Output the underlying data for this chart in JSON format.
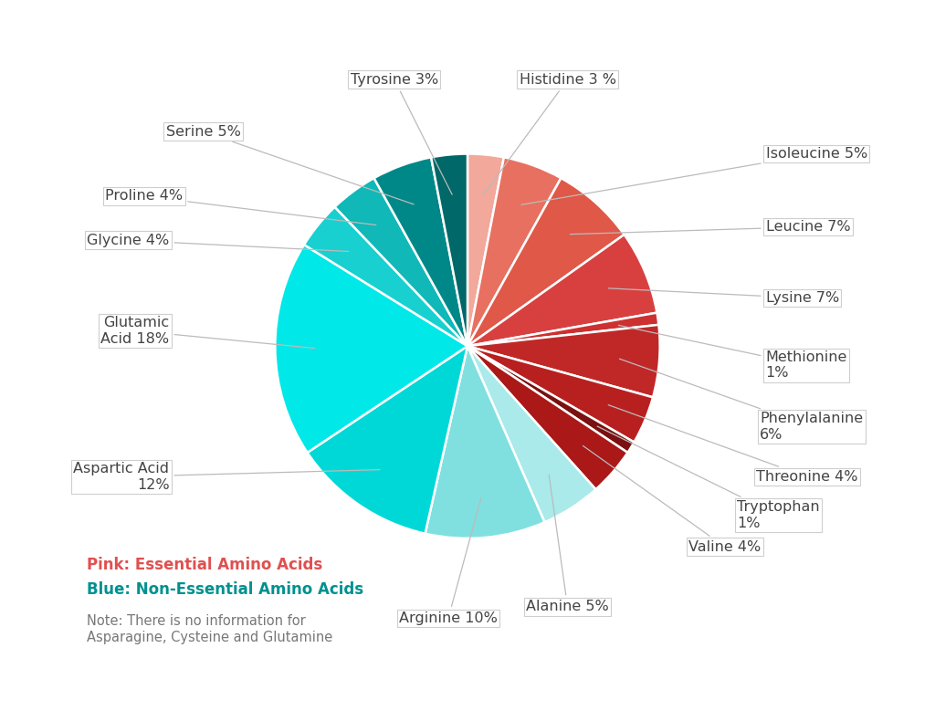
{
  "slices": [
    {
      "label": "Histidine 3 %",
      "value": 3,
      "color": "#F2A89A"
    },
    {
      "label": "Isoleucine 5%",
      "value": 5,
      "color": "#E87060"
    },
    {
      "label": "Leucine 7%",
      "value": 7,
      "color": "#E05848"
    },
    {
      "label": "Lysine 7%",
      "value": 7,
      "color": "#D84040"
    },
    {
      "label": "Methionine\n1%",
      "value": 1,
      "color": "#CC3030"
    },
    {
      "label": "Phenylalanine\n6%",
      "value": 6,
      "color": "#C02828"
    },
    {
      "label": "Threonine 4%",
      "value": 4,
      "color": "#B82020"
    },
    {
      "label": "Tryptophan\n1%",
      "value": 1,
      "color": "#7A1010"
    },
    {
      "label": "Valine 4%",
      "value": 4,
      "color": "#AA1818"
    },
    {
      "label": "Alanine 5%",
      "value": 5,
      "color": "#AAEAEA"
    },
    {
      "label": "Arginine 10%",
      "value": 10,
      "color": "#80E0E0"
    },
    {
      "label": "Aspartic Acid\n12%",
      "value": 12,
      "color": "#00D8D8"
    },
    {
      "label": "Glutamic\nAcid 18%",
      "value": 18,
      "color": "#00E8E8"
    },
    {
      "label": "Glycine 4%",
      "value": 4,
      "color": "#18D0D0"
    },
    {
      "label": "Proline 4%",
      "value": 4,
      "color": "#10B8B8"
    },
    {
      "label": "Serine 5%",
      "value": 5,
      "color": "#008888"
    },
    {
      "label": "Tyrosine 3%",
      "value": 3,
      "color": "#006868"
    }
  ],
  "legend_pink_text": "Pink: Essential Amino Acids",
  "legend_blue_text": "Blue: Non-Essential Amino Acids",
  "legend_note": "Note: There is no information for\nAsparagine, Cysteine and Glutamine",
  "bg_color": "#FFFFFF",
  "label_color": "#444444",
  "legend_pink_color": "#E05050",
  "legend_blue_color": "#009090",
  "legend_note_color": "#777777",
  "label_fontsize": 11.5,
  "legend_fontsize": 12
}
